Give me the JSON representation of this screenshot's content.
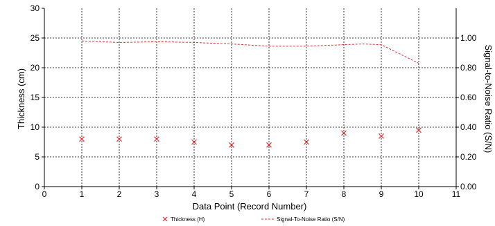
{
  "chart_data": {
    "type": "line",
    "xlabel": "Data Point (Record Number)",
    "ylabel": "Thickness (cm)",
    "y2label": "Signal-to-Noise Ratio (S/N)",
    "xlim": [
      0,
      11
    ],
    "ylim": [
      0,
      30
    ],
    "y2lim": [
      0,
      1.2
    ],
    "x_ticks": [
      "0",
      "1",
      "2",
      "3",
      "4",
      "5",
      "6",
      "7",
      "8",
      "9",
      "10",
      "11"
    ],
    "y_ticks": [
      "0",
      "5",
      "10",
      "15",
      "20",
      "25",
      "30"
    ],
    "y2_ticks": [
      "0.00",
      "0.20",
      "0.40",
      "0.60",
      "0.80",
      "1.00"
    ],
    "grid": true,
    "legend_position": "bottom",
    "series": [
      {
        "name": "Thickness (H)",
        "type": "scatter",
        "axis": "left",
        "color": "#e03030",
        "marker": "x",
        "x": [
          1,
          2,
          3,
          4,
          5,
          6,
          7,
          8,
          9,
          10
        ],
        "values": [
          8.0,
          8.0,
          8.0,
          7.5,
          7.0,
          7.0,
          7.5,
          9.0,
          8.5,
          9.5
        ]
      },
      {
        "name": "Signal-To-Noise Ratio (S/N)",
        "type": "line",
        "axis": "right",
        "color": "#e03030",
        "line_style": "dashed",
        "x": [
          1,
          2,
          3,
          4,
          5,
          6,
          7,
          8,
          8.5,
          9,
          10
        ],
        "values": [
          0.98,
          0.97,
          0.975,
          0.97,
          0.96,
          0.945,
          0.945,
          0.955,
          0.96,
          0.955,
          0.83
        ]
      }
    ]
  }
}
